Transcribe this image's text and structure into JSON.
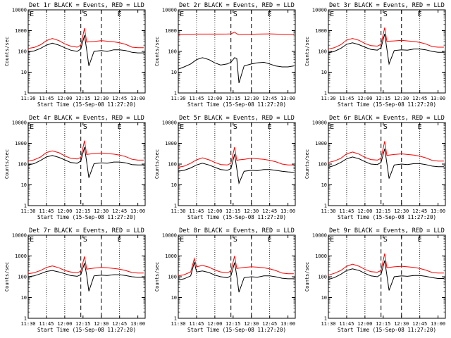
{
  "colors": {
    "events": "#000000",
    "lld": "#ff0000",
    "axis": "#000000",
    "background": "#ffffff"
  },
  "chart_data": [
    {
      "type": "line",
      "title": "Det 1r BLACK = Events, RED = LLD",
      "xlabel": "Start Time (15-Sep-08 11:27:20)",
      "ylabel": "Counts/sec",
      "yscale": "log",
      "ylim": [
        1,
        10000
      ],
      "xticks": [
        "11:30",
        "11:45",
        "12:00",
        "12:15",
        "12:30",
        "12:45",
        "13:00"
      ],
      "yticks": [
        "1",
        "10",
        "100",
        "1000",
        "10000"
      ],
      "markers": [
        "E",
        "S",
        "E"
      ],
      "x": [
        11.5,
        11.58,
        11.67,
        11.75,
        11.83,
        11.92,
        12.0,
        12.08,
        12.17,
        12.22,
        12.27,
        12.3,
        12.33,
        12.4,
        12.5,
        12.58,
        12.67,
        12.75,
        12.83,
        12.92,
        13.0,
        13.08
      ],
      "series": [
        {
          "name": "Events",
          "values": [
            95,
            105,
            140,
            200,
            250,
            200,
            150,
            115,
            100,
            130,
            600,
            120,
            20,
            100,
            110,
            100,
            120,
            120,
            110,
            90,
            85,
            85
          ]
        },
        {
          "name": "LLD",
          "values": [
            140,
            155,
            210,
            330,
            420,
            330,
            230,
            180,
            160,
            200,
            1300,
            280,
            290,
            300,
            330,
            310,
            290,
            260,
            220,
            160,
            150,
            150
          ]
        }
      ]
    },
    {
      "type": "line",
      "title": "Det 2r BLACK = Events, RED = LLD",
      "xlabel": "Start Time (15-Sep-08 11:27:20)",
      "ylabel": "Counts/sec",
      "yscale": "log",
      "ylim": [
        1,
        10000
      ],
      "xticks": [
        "11:30",
        "11:45",
        "12:00",
        "12:15",
        "12:30",
        "12:45",
        "13:00"
      ],
      "yticks": [
        "1",
        "10",
        "100",
        "1000",
        "10000"
      ],
      "markers": [
        "E",
        "S",
        "E"
      ],
      "x": [
        11.5,
        11.58,
        11.67,
        11.75,
        11.83,
        11.92,
        12.0,
        12.08,
        12.17,
        12.22,
        12.27,
        12.3,
        12.33,
        12.4,
        12.5,
        12.58,
        12.67,
        12.75,
        12.83,
        12.92,
        13.0,
        13.08
      ],
      "series": [
        {
          "name": "Events",
          "values": [
            14,
            18,
            25,
            40,
            50,
            40,
            28,
            22,
            25,
            30,
            50,
            45,
            3,
            20,
            25,
            28,
            30,
            25,
            20,
            18,
            18,
            20
          ]
        },
        {
          "name": "LLD",
          "values": [
            650,
            660,
            670,
            680,
            680,
            680,
            680,
            680,
            690,
            700,
            850,
            700,
            650,
            660,
            670,
            680,
            690,
            700,
            680,
            660,
            650,
            650
          ]
        }
      ]
    },
    {
      "type": "line",
      "title": "Det 3r BLACK = Events, RED = LLD",
      "xlabel": "Start Time (15-Sep-08 11:27:20)",
      "ylabel": "Counts/sec",
      "yscale": "log",
      "ylim": [
        1,
        10000
      ],
      "xticks": [
        "11:30",
        "11:45",
        "12:00",
        "12:15",
        "12:30",
        "12:45",
        "13:00"
      ],
      "yticks": [
        "1",
        "10",
        "100",
        "1000",
        "10000"
      ],
      "markers": [
        "E",
        "S",
        "E"
      ],
      "x": [
        11.5,
        11.58,
        11.67,
        11.75,
        11.83,
        11.92,
        12.0,
        12.08,
        12.17,
        12.22,
        12.27,
        12.3,
        12.33,
        12.4,
        12.5,
        12.58,
        12.67,
        12.75,
        12.83,
        12.92,
        13.0,
        13.08
      ],
      "series": [
        {
          "name": "Events",
          "values": [
            85,
            100,
            140,
            220,
            260,
            210,
            160,
            125,
            115,
            150,
            700,
            130,
            25,
            110,
            120,
            115,
            130,
            130,
            120,
            100,
            90,
            90
          ]
        },
        {
          "name": "LLD",
          "values": [
            130,
            150,
            210,
            350,
            420,
            340,
            240,
            190,
            180,
            220,
            1400,
            300,
            310,
            320,
            340,
            320,
            300,
            270,
            230,
            170,
            160,
            160
          ]
        }
      ]
    },
    {
      "type": "line",
      "title": "Det 4r BLACK = Events, RED = LLD",
      "xlabel": "Start Time (15-Sep-08 11:27:20)",
      "ylabel": "Counts/sec",
      "yscale": "log",
      "ylim": [
        1,
        10000
      ],
      "xticks": [
        "11:30",
        "11:45",
        "12:00",
        "12:15",
        "12:30",
        "12:45",
        "13:00"
      ],
      "yticks": [
        "1",
        "10",
        "100",
        "1000",
        "10000"
      ],
      "markers": [
        "E",
        "S",
        "E"
      ],
      "x": [
        11.5,
        11.58,
        11.67,
        11.75,
        11.83,
        11.92,
        12.0,
        12.08,
        12.17,
        12.22,
        12.27,
        12.3,
        12.33,
        12.4,
        12.5,
        12.58,
        12.67,
        12.75,
        12.83,
        12.92,
        13.0,
        13.08
      ],
      "series": [
        {
          "name": "Events",
          "values": [
            90,
            105,
            150,
            220,
            260,
            210,
            160,
            120,
            110,
            140,
            650,
            125,
            22,
            105,
            115,
            110,
            125,
            125,
            115,
            95,
            90,
            90
          ]
        },
        {
          "name": "LLD",
          "values": [
            140,
            160,
            220,
            360,
            430,
            350,
            250,
            190,
            175,
            210,
            1350,
            290,
            300,
            320,
            340,
            320,
            300,
            270,
            230,
            170,
            155,
            155
          ]
        }
      ]
    },
    {
      "type": "line",
      "title": "Det 5r BLACK = Events, RED = LLD",
      "xlabel": "Start Time (15-Sep-08 11:27:20)",
      "ylabel": "Counts/sec",
      "yscale": "log",
      "ylim": [
        1,
        10000
      ],
      "xticks": [
        "11:30",
        "11:45",
        "12:00",
        "12:15",
        "12:30",
        "12:45",
        "13:00"
      ],
      "yticks": [
        "1",
        "10",
        "100",
        "1000",
        "10000"
      ],
      "markers": [
        "E",
        "S",
        "E"
      ],
      "x": [
        11.5,
        11.58,
        11.67,
        11.75,
        11.83,
        11.92,
        12.0,
        12.08,
        12.17,
        12.22,
        12.27,
        12.3,
        12.33,
        12.4,
        12.5,
        12.58,
        12.67,
        12.75,
        12.83,
        12.92,
        13.0,
        13.08
      ],
      "series": [
        {
          "name": "Events",
          "values": [
            45,
            50,
            65,
            90,
            110,
            90,
            70,
            55,
            50,
            60,
            300,
            60,
            12,
            45,
            50,
            48,
            55,
            55,
            50,
            45,
            42,
            40
          ]
        },
        {
          "name": "LLD",
          "values": [
            70,
            80,
            110,
            160,
            200,
            160,
            120,
            95,
            90,
            110,
            650,
            150,
            160,
            170,
            190,
            180,
            170,
            150,
            130,
            100,
            90,
            90
          ]
        }
      ]
    },
    {
      "type": "line",
      "title": "Det 6r BLACK = Events, RED = LLD",
      "xlabel": "Start Time (15-Sep-08 11:27:20)",
      "ylabel": "Counts/sec",
      "yscale": "log",
      "ylim": [
        1,
        10000
      ],
      "xticks": [
        "11:30",
        "11:45",
        "12:00",
        "12:15",
        "12:30",
        "12:45",
        "13:00"
      ],
      "yticks": [
        "1",
        "10",
        "100",
        "1000",
        "10000"
      ],
      "markers": [
        "E",
        "S",
        "E"
      ],
      "x": [
        11.5,
        11.58,
        11.67,
        11.75,
        11.83,
        11.92,
        12.0,
        12.08,
        12.17,
        12.22,
        12.27,
        12.3,
        12.33,
        12.4,
        12.5,
        12.58,
        12.67,
        12.75,
        12.83,
        12.92,
        13.0,
        13.08
      ],
      "series": [
        {
          "name": "Events",
          "values": [
            70,
            85,
            120,
            180,
            220,
            180,
            130,
            100,
            95,
            120,
            550,
            110,
            20,
            90,
            100,
            95,
            105,
            105,
            95,
            80,
            75,
            75
          ]
        },
        {
          "name": "LLD",
          "values": [
            120,
            140,
            190,
            310,
            380,
            300,
            210,
            165,
            155,
            190,
            1250,
            260,
            270,
            290,
            310,
            290,
            270,
            240,
            200,
            150,
            140,
            140
          ]
        }
      ]
    },
    {
      "type": "line",
      "title": "Det 7r BLACK = Events, RED = LLD",
      "xlabel": "Start Time (15-Sep-08 11:27:20)",
      "ylabel": "Counts/sec",
      "yscale": "log",
      "ylim": [
        1,
        10000
      ],
      "xticks": [
        "11:30",
        "11:45",
        "12:00",
        "12:15",
        "12:30",
        "12:45",
        "13:00"
      ],
      "yticks": [
        "1",
        "10",
        "100",
        "1000",
        "10000"
      ],
      "markers": [
        "E",
        "S",
        "E"
      ],
      "x": [
        11.5,
        11.58,
        11.67,
        11.75,
        11.83,
        11.92,
        12.0,
        12.08,
        12.17,
        12.22,
        12.27,
        12.3,
        12.33,
        12.4,
        12.5,
        12.58,
        12.67,
        12.75,
        12.83,
        12.92,
        13.0,
        13.08
      ],
      "series": [
        {
          "name": "Events",
          "values": [
            100,
            110,
            140,
            180,
            200,
            170,
            140,
            115,
            105,
            125,
            450,
            120,
            20,
            110,
            120,
            115,
            125,
            125,
            115,
            100,
            95,
            95
          ]
        },
        {
          "name": "LLD",
          "values": [
            140,
            155,
            200,
            280,
            330,
            270,
            200,
            170,
            155,
            185,
            950,
            230,
            240,
            260,
            280,
            270,
            250,
            230,
            200,
            160,
            150,
            150
          ]
        }
      ]
    },
    {
      "type": "line",
      "title": "Det 8r BLACK = Events, RED = LLD",
      "xlabel": "Start Time (15-Sep-08 11:27:20)",
      "ylabel": "Counts/sec",
      "yscale": "log",
      "ylim": [
        1,
        10000
      ],
      "xticks": [
        "11:30",
        "11:45",
        "12:00",
        "12:15",
        "12:30",
        "12:45",
        "13:00"
      ],
      "yticks": [
        "1",
        "10",
        "100",
        "1000",
        "10000"
      ],
      "markers": [
        "E",
        "S",
        "E"
      ],
      "x": [
        11.5,
        11.58,
        11.67,
        11.72,
        11.75,
        11.83,
        11.92,
        12.0,
        12.08,
        12.17,
        12.22,
        12.27,
        12.3,
        12.33,
        12.4,
        12.5,
        12.58,
        12.67,
        12.75,
        12.83,
        12.92,
        13.0,
        13.08
      ],
      "series": [
        {
          "name": "Events",
          "values": [
            70,
            80,
            110,
            500,
            170,
            190,
            160,
            120,
            100,
            90,
            110,
            480,
            110,
            18,
            90,
            100,
            95,
            110,
            110,
            100,
            85,
            80,
            80
          ]
        },
        {
          "name": "LLD",
          "values": [
            110,
            125,
            170,
            750,
            300,
            350,
            290,
            210,
            170,
            155,
            190,
            1000,
            250,
            260,
            280,
            300,
            290,
            270,
            240,
            200,
            150,
            140,
            140
          ]
        }
      ]
    },
    {
      "type": "line",
      "title": "Det 9r BLACK = Events, RED = LLD",
      "xlabel": "Start Time (15-Sep-08 11:27:20)",
      "ylabel": "Counts/sec",
      "yscale": "log",
      "ylim": [
        1,
        10000
      ],
      "xticks": [
        "11:30",
        "11:45",
        "12:00",
        "12:15",
        "12:30",
        "12:45",
        "13:00"
      ],
      "yticks": [
        "1",
        "10",
        "100",
        "1000",
        "10000"
      ],
      "markers": [
        "E",
        "S",
        "E"
      ],
      "x": [
        11.5,
        11.58,
        11.67,
        11.75,
        11.83,
        11.92,
        12.0,
        12.08,
        12.17,
        12.22,
        12.27,
        12.3,
        12.33,
        12.4,
        12.5,
        12.58,
        12.67,
        12.75,
        12.83,
        12.92,
        13.0,
        13.08
      ],
      "series": [
        {
          "name": "Events",
          "values": [
            75,
            90,
            130,
            200,
            240,
            200,
            145,
            110,
            100,
            130,
            600,
            120,
            22,
            100,
            110,
            105,
            115,
            115,
            105,
            90,
            82,
            82
          ]
        },
        {
          "name": "LLD",
          "values": [
            120,
            145,
            200,
            320,
            400,
            320,
            225,
            175,
            165,
            200,
            1300,
            270,
            280,
            300,
            320,
            300,
            280,
            250,
            210,
            160,
            150,
            150
          ]
        }
      ]
    }
  ]
}
